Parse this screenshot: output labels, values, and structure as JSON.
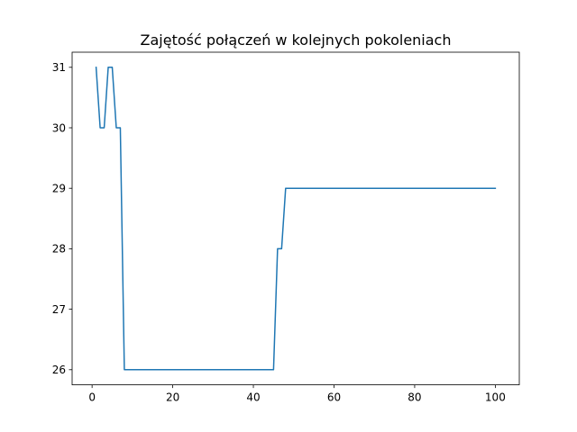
{
  "chart_data": {
    "type": "line",
    "title": "Zajętość połączeń w kolejnych pokoleniach",
    "xlabel": "",
    "ylabel": "",
    "xlim": [
      -4.95,
      105.95
    ],
    "ylim": [
      25.75,
      31.25
    ],
    "xticks": [
      0,
      20,
      40,
      60,
      80,
      100
    ],
    "yticks": [
      26,
      27,
      28,
      29,
      30,
      31
    ],
    "grid": false,
    "line_color": "#1f77b4",
    "series": [
      {
        "points": [
          [
            1,
            31
          ],
          [
            2,
            30
          ],
          [
            3,
            30
          ],
          [
            4,
            31
          ],
          [
            5,
            31
          ],
          [
            6,
            30
          ],
          [
            7,
            30
          ],
          [
            8,
            26
          ],
          [
            45,
            26
          ],
          [
            46,
            28
          ],
          [
            47,
            28
          ],
          [
            48,
            29
          ],
          [
            100,
            29
          ]
        ]
      }
    ]
  }
}
